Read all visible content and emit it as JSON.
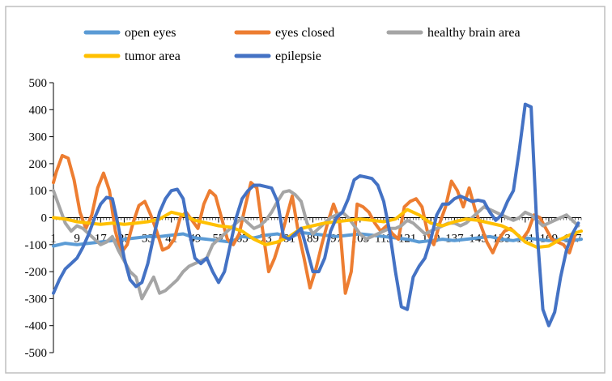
{
  "chart_data": {
    "type": "line",
    "title": "",
    "xlabel": "",
    "ylabel": "",
    "ylim": [
      -500,
      500
    ],
    "yticks": [
      500,
      400,
      300,
      200,
      100,
      0,
      -100,
      -200,
      -300,
      -400,
      -500
    ],
    "xlim": [
      1,
      180
    ],
    "xtick_labels": [
      "1",
      "9",
      "17",
      "25",
      "33",
      "41",
      "49",
      "57",
      "65",
      "73",
      "81",
      "89",
      "97",
      "105",
      "113",
      "121",
      "129",
      "137",
      "145",
      "153",
      "161",
      "169",
      "177"
    ],
    "xtick_positions": [
      1,
      9,
      17,
      25,
      33,
      41,
      49,
      57,
      65,
      73,
      81,
      89,
      97,
      105,
      113,
      121,
      129,
      137,
      145,
      153,
      161,
      169,
      177
    ],
    "grid": false,
    "legend_position": "top",
    "series": [
      {
        "name": "open eyes",
        "color": "#5B9BD5",
        "x": [
          1,
          5,
          9,
          13,
          17,
          21,
          25,
          29,
          33,
          37,
          41,
          45,
          49,
          53,
          57,
          61,
          65,
          69,
          73,
          77,
          81,
          85,
          89,
          93,
          97,
          101,
          105,
          109,
          113,
          117,
          121,
          125,
          129,
          133,
          137,
          141,
          145,
          149,
          153,
          157,
          161,
          165,
          169,
          173,
          177,
          180
        ],
        "y": [
          -105,
          -95,
          -100,
          -95,
          -90,
          -85,
          -80,
          -75,
          -70,
          -70,
          -65,
          -60,
          -75,
          -80,
          -85,
          -90,
          -70,
          -75,
          -65,
          -60,
          -75,
          -55,
          -60,
          -65,
          -70,
          -65,
          -60,
          -65,
          -70,
          -75,
          -80,
          -90,
          -85,
          -80,
          -85,
          -80,
          -75,
          -70,
          -80,
          -85,
          -75,
          -80,
          -85,
          -80,
          -85,
          -80
        ]
      },
      {
        "name": "eyes closed",
        "color": "#ED7D31",
        "x": [
          1,
          2,
          4,
          6,
          8,
          10,
          12,
          14,
          16,
          18,
          20,
          22,
          24,
          26,
          28,
          30,
          32,
          34,
          36,
          38,
          40,
          42,
          44,
          46,
          48,
          50,
          52,
          54,
          56,
          58,
          60,
          62,
          64,
          66,
          68,
          70,
          72,
          74,
          76,
          78,
          80,
          82,
          84,
          86,
          88,
          90,
          92,
          94,
          96,
          98,
          100,
          102,
          104,
          106,
          108,
          110,
          112,
          114,
          116,
          118,
          120,
          122,
          124,
          126,
          128,
          130,
          132,
          134,
          136,
          138,
          140,
          142,
          144,
          146,
          148,
          150,
          152,
          154,
          156,
          158,
          160,
          162,
          164,
          166,
          168,
          170,
          172,
          174,
          176,
          178
        ],
        "y": [
          130,
          170,
          230,
          220,
          140,
          20,
          -40,
          10,
          110,
          165,
          100,
          -50,
          -130,
          -100,
          -20,
          45,
          60,
          10,
          -50,
          -120,
          -110,
          -80,
          0,
          20,
          -10,
          -40,
          50,
          100,
          80,
          0,
          -80,
          -100,
          -60,
          40,
          130,
          110,
          -50,
          -200,
          -150,
          -80,
          0,
          80,
          -50,
          -150,
          -260,
          -190,
          -100,
          -20,
          50,
          -10,
          -280,
          -200,
          50,
          40,
          20,
          -20,
          -50,
          -30,
          -60,
          -80,
          40,
          60,
          70,
          40,
          -60,
          -100,
          -20,
          40,
          135,
          100,
          40,
          110,
          30,
          -30,
          -90,
          -130,
          -80,
          -50,
          -40,
          -60,
          -80,
          -50,
          10,
          0,
          -40,
          -80,
          -90,
          -100,
          -130,
          -60
        ]
      },
      {
        "name": "healthy brain area",
        "color": "#A5A5A5",
        "x": [
          1,
          3,
          5,
          7,
          9,
          11,
          13,
          15,
          17,
          19,
          21,
          23,
          25,
          27,
          29,
          31,
          33,
          35,
          37,
          39,
          41,
          43,
          45,
          47,
          49,
          51,
          53,
          55,
          57,
          59,
          61,
          63,
          65,
          67,
          69,
          71,
          73,
          75,
          77,
          79,
          81,
          83,
          85,
          87,
          89,
          91,
          93,
          95,
          97,
          99,
          101,
          103,
          105,
          107,
          109,
          111,
          113,
          115,
          117,
          119,
          121,
          123,
          125,
          127,
          129,
          131,
          133,
          135,
          137,
          139,
          141,
          143,
          145,
          147,
          149,
          151,
          153,
          155,
          157,
          159,
          161,
          163,
          165,
          167,
          169,
          171,
          173,
          175,
          177,
          179
        ],
        "y": [
          100,
          40,
          -20,
          -50,
          -30,
          -40,
          -60,
          -80,
          -100,
          -90,
          -70,
          -120,
          -160,
          -200,
          -220,
          -300,
          -260,
          -220,
          -280,
          -270,
          -250,
          -230,
          -200,
          -180,
          -170,
          -160,
          -150,
          -100,
          -80,
          -60,
          -40,
          -20,
          0,
          -20,
          -40,
          -30,
          -10,
          20,
          60,
          95,
          100,
          85,
          60,
          -20,
          -60,
          -40,
          -20,
          0,
          10,
          20,
          0,
          -30,
          -60,
          -80,
          -70,
          -60,
          -50,
          -40,
          -40,
          -30,
          -10,
          -20,
          -40,
          -60,
          -50,
          -40,
          -30,
          -20,
          -20,
          -30,
          -20,
          0,
          20,
          40,
          30,
          20,
          10,
          0,
          -10,
          0,
          20,
          10,
          -10,
          -30,
          -20,
          -10,
          0,
          10,
          -10,
          -30
        ]
      },
      {
        "name": "tumor area",
        "color": "#FFC000",
        "x": [
          1,
          5,
          9,
          13,
          17,
          21,
          25,
          29,
          33,
          37,
          41,
          45,
          49,
          53,
          57,
          61,
          65,
          69,
          73,
          77,
          81,
          85,
          89,
          93,
          97,
          101,
          105,
          109,
          113,
          117,
          121,
          125,
          129,
          133,
          137,
          141,
          145,
          149,
          153,
          157,
          161,
          165,
          169,
          173,
          177,
          180
        ],
        "y": [
          0,
          -5,
          -15,
          -20,
          -25,
          -20,
          -25,
          -20,
          -15,
          -5,
          20,
          10,
          -10,
          -20,
          -30,
          -35,
          -50,
          -80,
          -100,
          -90,
          -70,
          -40,
          -30,
          -20,
          -15,
          -10,
          -5,
          -10,
          -15,
          -5,
          30,
          10,
          -20,
          -30,
          -15,
          -5,
          -10,
          -20,
          -30,
          -50,
          -90,
          -110,
          -105,
          -80,
          -60,
          -50
        ]
      },
      {
        "name": "epilepsie",
        "color": "#4472C4",
        "x": [
          1,
          3,
          5,
          7,
          9,
          11,
          13,
          15,
          17,
          19,
          21,
          23,
          25,
          27,
          29,
          31,
          33,
          35,
          37,
          39,
          41,
          43,
          45,
          47,
          49,
          51,
          53,
          55,
          57,
          59,
          61,
          63,
          65,
          67,
          69,
          71,
          73,
          75,
          77,
          79,
          81,
          83,
          85,
          87,
          89,
          91,
          93,
          95,
          97,
          99,
          101,
          103,
          105,
          107,
          109,
          111,
          113,
          115,
          117,
          119,
          121,
          123,
          125,
          127,
          129,
          131,
          133,
          135,
          137,
          139,
          141,
          143,
          145,
          147,
          149,
          151,
          153,
          155,
          157,
          159,
          161,
          163,
          165,
          167,
          169,
          171,
          173,
          175,
          177,
          179
        ],
        "y": [
          -280,
          -230,
          -190,
          -170,
          -150,
          -110,
          -60,
          0,
          50,
          75,
          70,
          -30,
          -150,
          -230,
          -255,
          -240,
          -170,
          -70,
          20,
          70,
          100,
          105,
          70,
          -50,
          -150,
          -170,
          -150,
          -200,
          -240,
          -200,
          -100,
          0,
          70,
          100,
          120,
          120,
          115,
          110,
          60,
          -70,
          -80,
          -60,
          -40,
          -120,
          -200,
          -200,
          -150,
          -50,
          0,
          20,
          70,
          140,
          155,
          150,
          145,
          120,
          60,
          -50,
          -200,
          -330,
          -340,
          -220,
          -180,
          -150,
          -80,
          10,
          50,
          50,
          70,
          80,
          70,
          60,
          65,
          60,
          20,
          -10,
          10,
          60,
          100,
          250,
          420,
          410,
          -50,
          -340,
          -400,
          -350,
          -220,
          -120,
          -60,
          -20
        ]
      }
    ]
  }
}
